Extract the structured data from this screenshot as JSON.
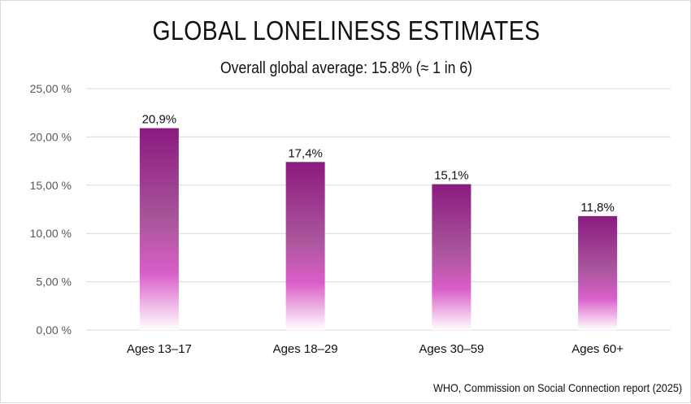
{
  "chart_data": {
    "type": "bar",
    "title": "GLOBAL LONELINESS ESTIMATES",
    "subtitle": "Overall global average: 15.8% (≈ 1 in 6)",
    "categories": [
      "Ages 13–17",
      "Ages 18–29",
      "Ages 30–59",
      "Ages 60+"
    ],
    "values": [
      20.9,
      17.4,
      15.1,
      11.8
    ],
    "data_labels": [
      "20,9%",
      "17,4%",
      "15,1%",
      "11,8%"
    ],
    "y_ticks": [
      0,
      5,
      10,
      15,
      20,
      25
    ],
    "y_tick_labels": [
      "0,00 %",
      "5,00 %",
      "10,00 %",
      "15,00 %",
      "20,00 %",
      "25,00 %"
    ],
    "ylim": [
      0,
      25
    ],
    "xlabel": "",
    "ylabel": "",
    "grid": true,
    "legend": "none",
    "colors": {
      "bar_top": "#8b1a80",
      "bar_mid": "#a8559a",
      "bar_bright": "#d95fc8",
      "bar_fade": "#ffffff",
      "grid": "#d9d9d9"
    },
    "source": "WHO, Commission on Social Connection report (2025)"
  }
}
